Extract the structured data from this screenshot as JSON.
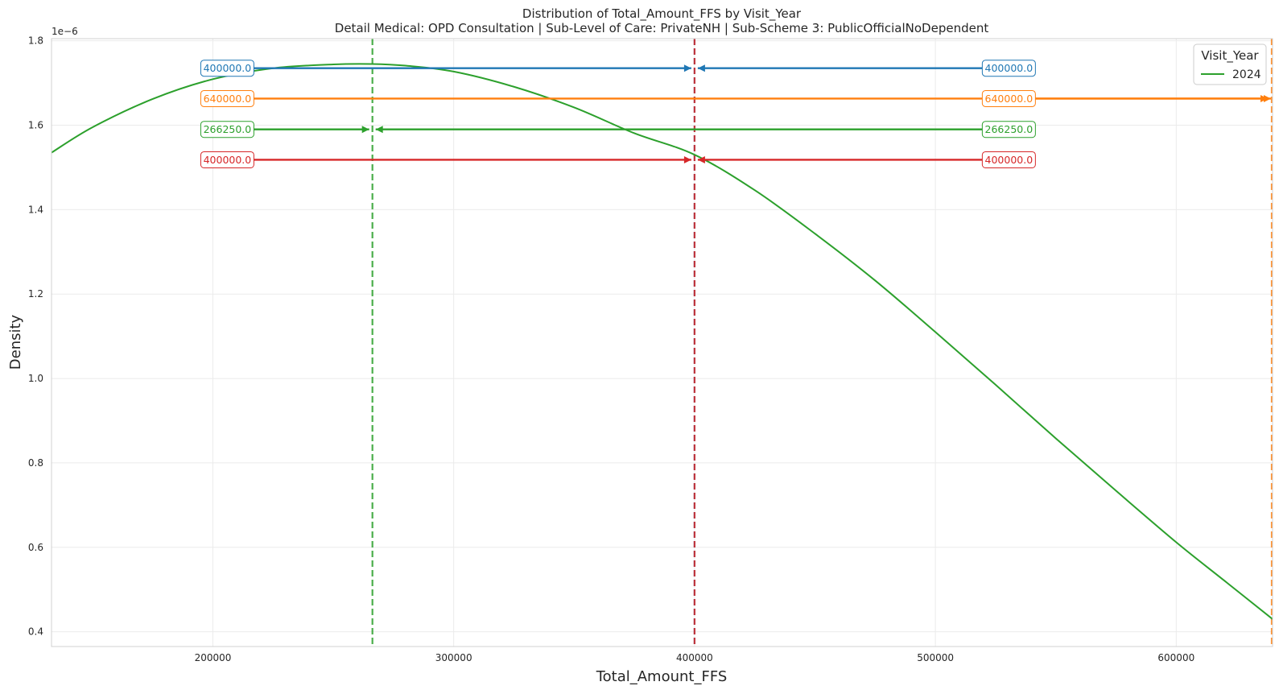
{
  "chart_data": {
    "type": "line",
    "title": "Distribution of Total_Amount_FFS by Visit_Year",
    "subtitle": "Detail Medical: OPD Consultation | Sub-Level of Care: PrivateNH | Sub-Scheme 3: PublicOfficialNoDependent",
    "xlabel": "Total_Amount_FFS",
    "ylabel": "Density",
    "y_offset_label": "1e−6",
    "xlim": [
      133000,
      640000
    ],
    "ylim": [
      0.365,
      1.805
    ],
    "x_ticks": [
      200000,
      300000,
      400000,
      500000,
      600000
    ],
    "x_tick_labels": [
      "200000",
      "300000",
      "400000",
      "500000",
      "600000"
    ],
    "y_ticks": [
      0.4,
      0.6,
      0.8,
      1.0,
      1.2,
      1.4,
      1.6,
      1.8
    ],
    "y_tick_labels": [
      "0.4",
      "0.6",
      "0.8",
      "1.0",
      "1.2",
      "1.4",
      "1.6",
      "1.8"
    ],
    "grid": true,
    "legend": {
      "title": "Visit_Year",
      "placement": "top-right"
    },
    "series": [
      {
        "name": "2024",
        "color": "#2ca02c",
        "x": [
          133000,
          150000,
          175000,
          200000,
          225000,
          250000,
          266000,
          280000,
          300000,
          325000,
          350000,
          375000,
          400000,
          425000,
          450000,
          475000,
          500000,
          525000,
          550000,
          575000,
          600000,
          620000,
          640000
        ],
        "y": [
          1.535,
          1.595,
          1.662,
          1.709,
          1.735,
          1.744,
          1.745,
          1.741,
          1.727,
          1.691,
          1.642,
          1.581,
          1.53,
          1.446,
          1.343,
          1.232,
          1.11,
          0.985,
          0.858,
          0.734,
          0.612,
          0.521,
          0.43
        ]
      }
    ],
    "reference_lines": [
      {
        "color": "#1f77b4",
        "x": 400000,
        "y": 1.735,
        "left_label": "400000.0",
        "right_label": "400000.0"
      },
      {
        "color": "#ff7f0e",
        "x": 640000,
        "y": 1.663,
        "left_label": "640000.0",
        "right_label": "640000.0"
      },
      {
        "color": "#2ca02c",
        "x": 266250,
        "y": 1.59,
        "left_label": "266250.0",
        "right_label": "266250.0"
      },
      {
        "color": "#d62728",
        "x": 400000,
        "y": 1.518,
        "left_label": "400000.0",
        "right_label": "400000.0"
      }
    ],
    "label_anchor_x": {
      "left": 206000,
      "right": 530500
    }
  }
}
